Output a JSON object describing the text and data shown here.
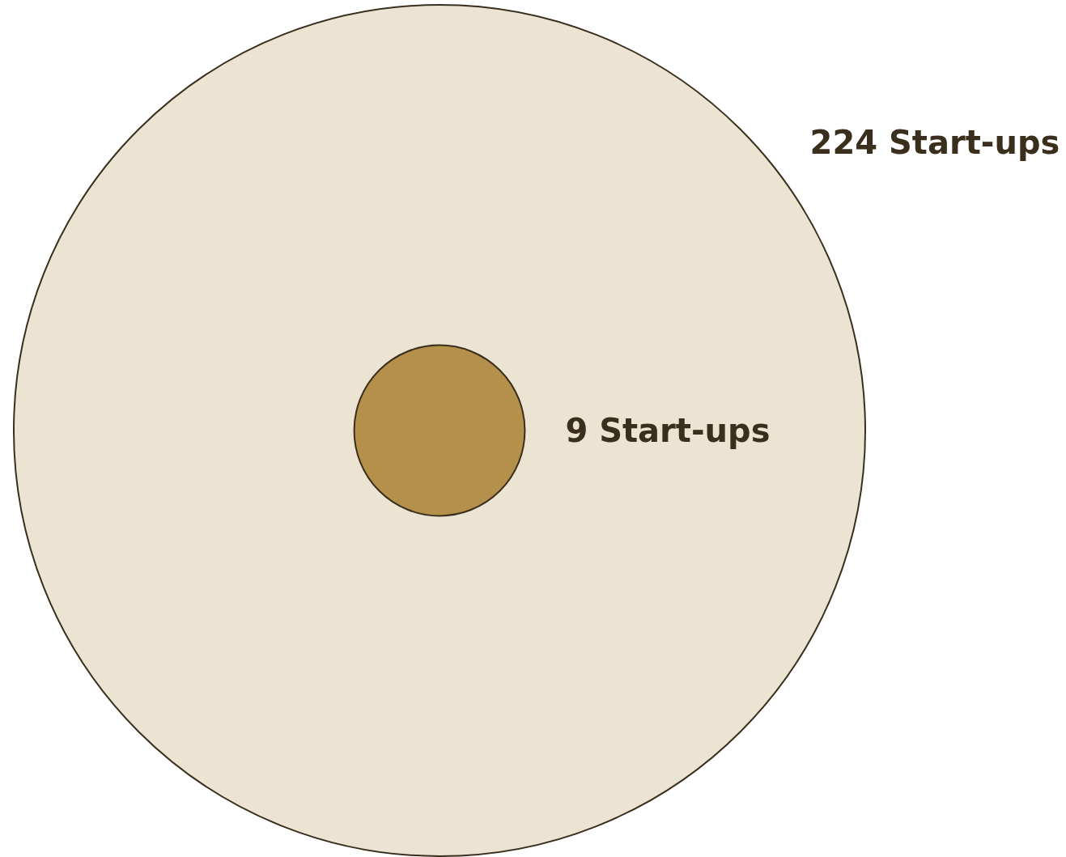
{
  "chart_data": {
    "type": "other",
    "categories": [
      "Start-ups",
      "Start-ups"
    ],
    "values": [
      224,
      9
    ],
    "value_labels": [
      "224",
      "9"
    ],
    "colors": [
      "#ece4d2",
      "#b5904b"
    ]
  }
}
